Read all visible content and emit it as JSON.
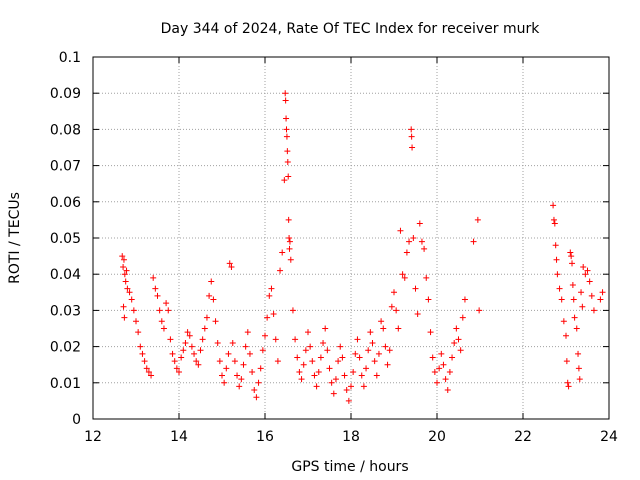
{
  "chart_data": {
    "type": "scatter",
    "title": "Day 344 of 2024, Rate Of TEC Index for receiver murk",
    "xlabel": "GPS time / hours",
    "ylabel": "ROTI / TECUs",
    "xlim": [
      12,
      24
    ],
    "ylim": [
      0,
      0.1
    ],
    "x_ticks": [
      12,
      14,
      16,
      18,
      20,
      22,
      24
    ],
    "x_tick_labels": [
      "12",
      "14",
      "16",
      "18",
      "20",
      "22",
      "24"
    ],
    "y_ticks": [
      0,
      0.01,
      0.02,
      0.03,
      0.04,
      0.05,
      0.06,
      0.07,
      0.08,
      0.09,
      0.1
    ],
    "y_tick_labels": [
      "0",
      "0.01",
      "0.02",
      "0.03",
      "0.04",
      "0.05",
      "0.06",
      "0.07",
      "0.08",
      "0.09",
      "0.1"
    ],
    "grid": true,
    "marker": "+",
    "marker_color": "#ff0000",
    "points": [
      [
        12.68,
        0.045
      ],
      [
        12.7,
        0.042
      ],
      [
        12.72,
        0.044
      ],
      [
        12.74,
        0.04
      ],
      [
        12.76,
        0.038
      ],
      [
        12.78,
        0.041
      ],
      [
        12.71,
        0.031
      ],
      [
        12.73,
        0.028
      ],
      [
        12.8,
        0.036
      ],
      [
        12.85,
        0.035
      ],
      [
        12.9,
        0.033
      ],
      [
        12.95,
        0.03
      ],
      [
        13.0,
        0.027
      ],
      [
        13.05,
        0.024
      ],
      [
        13.1,
        0.02
      ],
      [
        13.15,
        0.018
      ],
      [
        13.2,
        0.016
      ],
      [
        13.25,
        0.014
      ],
      [
        13.3,
        0.013
      ],
      [
        13.35,
        0.012
      ],
      [
        13.4,
        0.039
      ],
      [
        13.45,
        0.036
      ],
      [
        13.5,
        0.034
      ],
      [
        13.55,
        0.03
      ],
      [
        13.6,
        0.027
      ],
      [
        13.65,
        0.025
      ],
      [
        13.7,
        0.032
      ],
      [
        13.75,
        0.03
      ],
      [
        13.8,
        0.022
      ],
      [
        13.85,
        0.018
      ],
      [
        13.9,
        0.016
      ],
      [
        13.95,
        0.014
      ],
      [
        14.0,
        0.013
      ],
      [
        14.05,
        0.017
      ],
      [
        14.1,
        0.019
      ],
      [
        14.15,
        0.021
      ],
      [
        14.2,
        0.024
      ],
      [
        14.25,
        0.023
      ],
      [
        14.3,
        0.02
      ],
      [
        14.35,
        0.018
      ],
      [
        14.4,
        0.016
      ],
      [
        14.45,
        0.015
      ],
      [
        14.5,
        0.019
      ],
      [
        14.55,
        0.022
      ],
      [
        14.6,
        0.025
      ],
      [
        14.65,
        0.028
      ],
      [
        14.7,
        0.034
      ],
      [
        14.75,
        0.038
      ],
      [
        14.8,
        0.033
      ],
      [
        14.85,
        0.027
      ],
      [
        14.9,
        0.021
      ],
      [
        14.95,
        0.016
      ],
      [
        15.0,
        0.012
      ],
      [
        15.05,
        0.01
      ],
      [
        15.1,
        0.014
      ],
      [
        15.15,
        0.018
      ],
      [
        15.18,
        0.043
      ],
      [
        15.22,
        0.042
      ],
      [
        15.25,
        0.021
      ],
      [
        15.3,
        0.016
      ],
      [
        15.35,
        0.012
      ],
      [
        15.4,
        0.009
      ],
      [
        15.45,
        0.011
      ],
      [
        15.5,
        0.015
      ],
      [
        15.55,
        0.02
      ],
      [
        15.6,
        0.024
      ],
      [
        15.65,
        0.018
      ],
      [
        15.7,
        0.013
      ],
      [
        15.75,
        0.008
      ],
      [
        15.8,
        0.006
      ],
      [
        15.85,
        0.01
      ],
      [
        15.9,
        0.014
      ],
      [
        15.95,
        0.019
      ],
      [
        16.0,
        0.023
      ],
      [
        16.05,
        0.028
      ],
      [
        16.1,
        0.034
      ],
      [
        16.15,
        0.036
      ],
      [
        16.2,
        0.029
      ],
      [
        16.25,
        0.022
      ],
      [
        16.3,
        0.016
      ],
      [
        16.35,
        0.041
      ],
      [
        16.4,
        0.046
      ],
      [
        16.45,
        0.066
      ],
      [
        16.47,
        0.09
      ],
      [
        16.48,
        0.088
      ],
      [
        16.49,
        0.083
      ],
      [
        16.5,
        0.08
      ],
      [
        16.51,
        0.078
      ],
      [
        16.52,
        0.074
      ],
      [
        16.53,
        0.071
      ],
      [
        16.54,
        0.067
      ],
      [
        16.55,
        0.055
      ],
      [
        16.56,
        0.05
      ],
      [
        16.57,
        0.047
      ],
      [
        16.58,
        0.049
      ],
      [
        16.6,
        0.044
      ],
      [
        16.65,
        0.03
      ],
      [
        16.7,
        0.022
      ],
      [
        16.75,
        0.017
      ],
      [
        16.8,
        0.013
      ],
      [
        16.85,
        0.011
      ],
      [
        16.9,
        0.015
      ],
      [
        16.95,
        0.019
      ],
      [
        17.0,
        0.024
      ],
      [
        17.05,
        0.02
      ],
      [
        17.1,
        0.016
      ],
      [
        17.15,
        0.012
      ],
      [
        17.2,
        0.009
      ],
      [
        17.25,
        0.013
      ],
      [
        17.3,
        0.017
      ],
      [
        17.35,
        0.021
      ],
      [
        17.4,
        0.025
      ],
      [
        17.45,
        0.019
      ],
      [
        17.5,
        0.014
      ],
      [
        17.55,
        0.01
      ],
      [
        17.6,
        0.007
      ],
      [
        17.65,
        0.011
      ],
      [
        17.7,
        0.016
      ],
      [
        17.75,
        0.02
      ],
      [
        17.8,
        0.017
      ],
      [
        17.85,
        0.012
      ],
      [
        17.9,
        0.008
      ],
      [
        17.95,
        0.005
      ],
      [
        18.0,
        0.009
      ],
      [
        18.05,
        0.013
      ],
      [
        18.1,
        0.018
      ],
      [
        18.15,
        0.022
      ],
      [
        18.2,
        0.017
      ],
      [
        18.25,
        0.012
      ],
      [
        18.3,
        0.009
      ],
      [
        18.35,
        0.014
      ],
      [
        18.4,
        0.019
      ],
      [
        18.45,
        0.024
      ],
      [
        18.5,
        0.021
      ],
      [
        18.55,
        0.016
      ],
      [
        18.6,
        0.012
      ],
      [
        18.65,
        0.018
      ],
      [
        18.7,
        0.027
      ],
      [
        18.75,
        0.025
      ],
      [
        18.8,
        0.02
      ],
      [
        18.85,
        0.015
      ],
      [
        18.9,
        0.019
      ],
      [
        18.95,
        0.031
      ],
      [
        19.0,
        0.035
      ],
      [
        19.05,
        0.03
      ],
      [
        19.1,
        0.025
      ],
      [
        19.15,
        0.052
      ],
      [
        19.2,
        0.04
      ],
      [
        19.25,
        0.039
      ],
      [
        19.3,
        0.046
      ],
      [
        19.35,
        0.049
      ],
      [
        19.4,
        0.08
      ],
      [
        19.41,
        0.078
      ],
      [
        19.42,
        0.075
      ],
      [
        19.45,
        0.05
      ],
      [
        19.5,
        0.036
      ],
      [
        19.55,
        0.029
      ],
      [
        19.6,
        0.054
      ],
      [
        19.65,
        0.049
      ],
      [
        19.7,
        0.047
      ],
      [
        19.75,
        0.039
      ],
      [
        19.8,
        0.033
      ],
      [
        19.85,
        0.024
      ],
      [
        19.9,
        0.017
      ],
      [
        19.95,
        0.013
      ],
      [
        20.0,
        0.01
      ],
      [
        20.05,
        0.014
      ],
      [
        20.1,
        0.018
      ],
      [
        20.15,
        0.015
      ],
      [
        20.2,
        0.011
      ],
      [
        20.25,
        0.008
      ],
      [
        20.3,
        0.013
      ],
      [
        20.35,
        0.017
      ],
      [
        20.4,
        0.021
      ],
      [
        20.45,
        0.025
      ],
      [
        20.5,
        0.022
      ],
      [
        20.55,
        0.019
      ],
      [
        20.6,
        0.028
      ],
      [
        20.65,
        0.033
      ],
      [
        20.85,
        0.049
      ],
      [
        20.95,
        0.055
      ],
      [
        20.98,
        0.03
      ],
      [
        22.7,
        0.059
      ],
      [
        22.72,
        0.055
      ],
      [
        22.74,
        0.054
      ],
      [
        22.76,
        0.048
      ],
      [
        22.78,
        0.044
      ],
      [
        22.8,
        0.04
      ],
      [
        22.85,
        0.036
      ],
      [
        22.9,
        0.033
      ],
      [
        22.95,
        0.027
      ],
      [
        23.0,
        0.023
      ],
      [
        23.02,
        0.016
      ],
      [
        23.04,
        0.01
      ],
      [
        23.06,
        0.009
      ],
      [
        23.1,
        0.046
      ],
      [
        23.12,
        0.045
      ],
      [
        23.14,
        0.043
      ],
      [
        23.16,
        0.037
      ],
      [
        23.18,
        0.033
      ],
      [
        23.2,
        0.028
      ],
      [
        23.25,
        0.025
      ],
      [
        23.28,
        0.018
      ],
      [
        23.3,
        0.014
      ],
      [
        23.32,
        0.011
      ],
      [
        23.35,
        0.035
      ],
      [
        23.38,
        0.031
      ],
      [
        23.4,
        0.042
      ],
      [
        23.45,
        0.04
      ],
      [
        23.5,
        0.041
      ],
      [
        23.55,
        0.038
      ],
      [
        23.6,
        0.034
      ],
      [
        23.65,
        0.03
      ],
      [
        23.8,
        0.033
      ],
      [
        23.85,
        0.035
      ]
    ]
  },
  "style": {
    "marker_color": "#ff0000",
    "grid_color": "#a0a0a0",
    "axis_color": "#000000"
  }
}
